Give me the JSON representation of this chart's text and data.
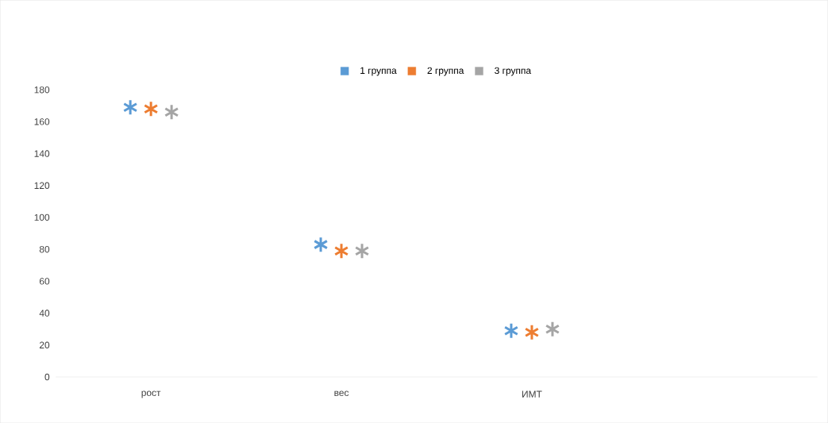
{
  "chart_data": {
    "type": "scatter",
    "categories": [
      "рост",
      "вес",
      "ИМТ"
    ],
    "series": [
      {
        "name": "1 группа",
        "color": "#5b9bd5",
        "values": [
          169,
          83,
          29
        ]
      },
      {
        "name": "2 группа",
        "color": "#ed7d31",
        "values": [
          168,
          79,
          28
        ]
      },
      {
        "name": "3 группа",
        "color": "#a5a5a5",
        "values": [
          166,
          79,
          30
        ]
      }
    ],
    "ylim": [
      0,
      180
    ],
    "yticks": [
      0,
      20,
      40,
      60,
      80,
      100,
      120,
      140,
      160,
      180
    ],
    "legend": "top",
    "marker": "cross"
  }
}
